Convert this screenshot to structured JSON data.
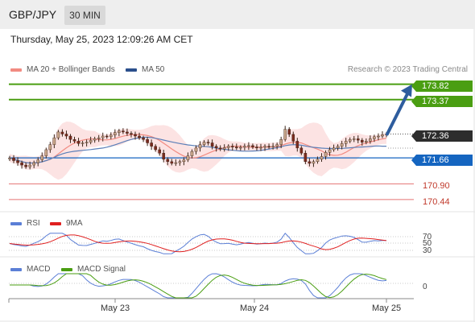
{
  "header": {
    "symbol": "GBP/JPY",
    "timeframe": "30 MIN"
  },
  "datetime": "Thursday, May 25, 2023 12:09:26 AM CET",
  "legend": {
    "items": [
      {
        "label": "MA 20 + Bollinger Bands",
        "color": "#f28b82"
      },
      {
        "label": "MA 50",
        "color": "#2b4f8c"
      }
    ],
    "credit": "Research © 2023 Trading Central"
  },
  "chart_data": {
    "type": "candlestick",
    "ylim": [
      170.2,
      174.0
    ],
    "last_price": "172.36",
    "levels": {
      "resistance": [
        "173.82",
        "173.37"
      ],
      "pivot": "171.66",
      "support": [
        "170.90",
        "170.44"
      ]
    },
    "target_arrow": {
      "from": 172.36,
      "to": 173.82
    },
    "x_labels": [
      "May 23",
      "May 24",
      "May 25"
    ],
    "series": [
      {
        "name": "MA 20 + Bollinger Bands",
        "color": "#f28b82"
      },
      {
        "name": "MA 50",
        "color": "#2b4f8c"
      }
    ],
    "closes": [
      171.66,
      171.58,
      171.52,
      171.45,
      171.4,
      171.45,
      171.52,
      171.6,
      171.72,
      171.9,
      172.05,
      172.25,
      172.42,
      172.36,
      172.3,
      172.2,
      172.15,
      172.08,
      172.1,
      172.12,
      172.18,
      172.22,
      172.25,
      172.3,
      172.28,
      172.33,
      172.4,
      172.45,
      172.42,
      172.38,
      172.35,
      172.3,
      172.25,
      172.2,
      172.1,
      172.0,
      171.9,
      171.8,
      171.62,
      171.55,
      171.5,
      171.52,
      171.55,
      171.6,
      171.72,
      171.85,
      171.95,
      172.05,
      172.12,
      172.1,
      172.0,
      171.95,
      171.92,
      171.96,
      172.0,
      171.98,
      171.95,
      171.97,
      172.0,
      172.02,
      171.98,
      171.95,
      171.97,
      172.0,
      171.98,
      172.0,
      172.05,
      172.2,
      172.5,
      172.35,
      172.15,
      171.95,
      171.8,
      171.55,
      171.5,
      171.55,
      171.62,
      171.7,
      171.82,
      171.9,
      171.95,
      172.0,
      172.08,
      172.15,
      172.2,
      172.22,
      172.18,
      172.12,
      172.15,
      172.22,
      172.28,
      172.3,
      172.34,
      172.36
    ]
  },
  "rsi": {
    "label": "RSI",
    "ma_label": "9MA",
    "levels": [
      "70",
      "50",
      "30"
    ]
  },
  "macd": {
    "label": "MACD",
    "signal_label": "MACD Signal",
    "zero_label": "0"
  }
}
